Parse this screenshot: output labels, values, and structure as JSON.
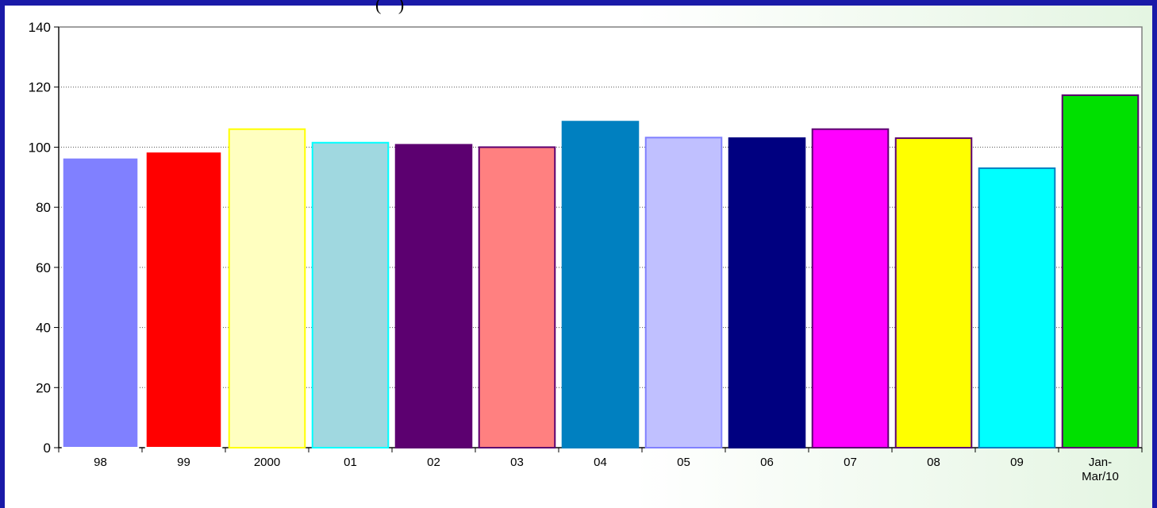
{
  "chart_data": {
    "type": "bar",
    "categories": [
      "98",
      "99",
      "2000",
      "01",
      "02",
      "03",
      "04",
      "05",
      "06",
      "07",
      "08",
      "09",
      "Jan-\nMar/10"
    ],
    "values": [
      96.5,
      98.5,
      106,
      101.5,
      100.8,
      100,
      108.5,
      103.2,
      103,
      106,
      103,
      93,
      117.3
    ],
    "colors": [
      "#8080ff",
      "#ff0000",
      "#ffffc0",
      "#a0d8e0",
      "#5c0070",
      "#ff8080",
      "#0080c0",
      "#c0c0ff",
      "#000080",
      "#ff00ff",
      "#ffff00",
      "#00ffff",
      "#00e000"
    ],
    "border_colors": [
      "#ffffff",
      "#ffffff",
      "#ffff00",
      "#00ffff",
      "#5c0070",
      "#5c0070",
      "#0080c0",
      "#8080ff",
      "#000080",
      "#5c0070",
      "#5c0070",
      "#0080c0",
      "#5c0070"
    ],
    "ylim": [
      0,
      140
    ],
    "yticks": [
      0,
      20,
      40,
      60,
      80,
      100,
      120,
      140
    ],
    "grid": true,
    "xlabel": "",
    "ylabel": "",
    "title_fragment": "(                                                  )"
  }
}
